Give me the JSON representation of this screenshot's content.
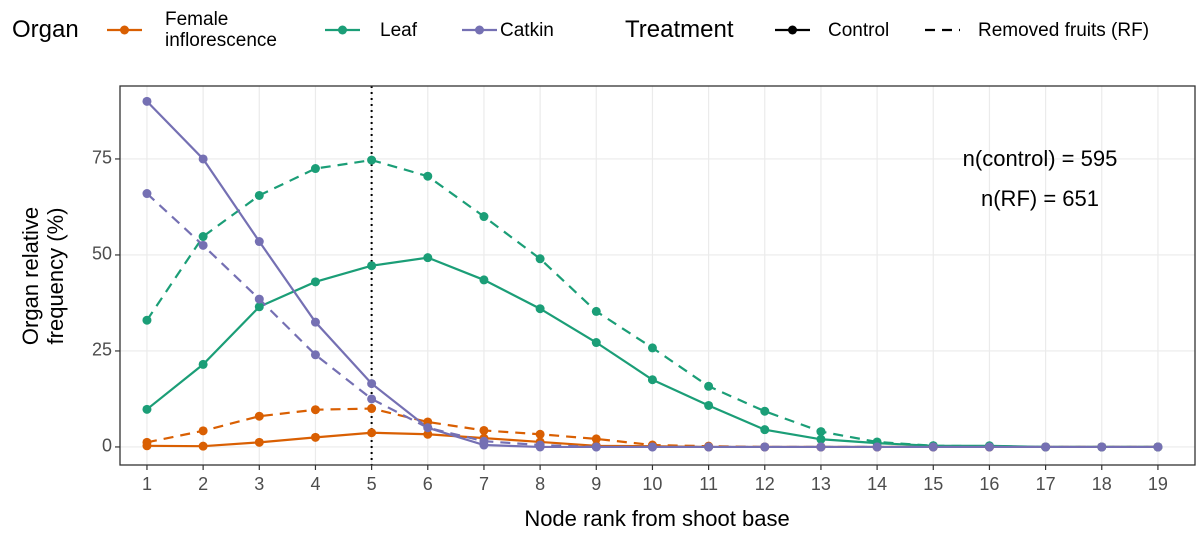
{
  "chart_data": {
    "type": "line",
    "x_label": "Node rank from shoot base",
    "y_label": [
      "Organ relative",
      "frequency (%)"
    ],
    "x": [
      1,
      2,
      3,
      4,
      5,
      6,
      7,
      8,
      9,
      10,
      11,
      12,
      13,
      14,
      15,
      16,
      17,
      18,
      19
    ],
    "xlim": [
      0.52,
      19.66
    ],
    "xticks": [
      1,
      2,
      3,
      4,
      5,
      6,
      7,
      8,
      9,
      10,
      11,
      12,
      13,
      14,
      15,
      16,
      17,
      18,
      19
    ],
    "ylim": [
      -4.7,
      94
    ],
    "yticks": [
      0,
      25,
      50,
      75
    ],
    "grid": true,
    "vline": 5,
    "annotations": [
      "n(control) = 595",
      "n(RF) = 651"
    ],
    "legend": {
      "organ_title": "Organ",
      "treatment_title": "Treatment",
      "position": "top"
    },
    "treatments": [
      {
        "name": "Control",
        "dash": "solid"
      },
      {
        "name": "Removed fruits (RF)",
        "dash": "dashed"
      }
    ],
    "series": [
      {
        "name": "Female inflorescence",
        "color": "#d95f02",
        "treatment_values": [
          [
            0.3,
            0.2,
            1.2,
            2.5,
            3.7,
            3.3,
            2.3,
            1.3,
            0.3,
            0.2,
            0,
            0,
            0,
            0,
            0,
            0,
            0,
            0,
            0
          ],
          [
            1.2,
            4.2,
            8,
            9.7,
            10,
            6.5,
            4.3,
            3.3,
            2.1,
            0.5,
            0.2,
            0,
            0,
            0,
            0,
            0,
            0,
            0,
            0
          ]
        ]
      },
      {
        "name": "Leaf",
        "color": "#1b9e77",
        "treatment_values": [
          [
            9.8,
            21.5,
            36.5,
            43,
            47.2,
            49.3,
            43.5,
            36,
            27.2,
            17.5,
            10.8,
            4.5,
            2,
            1,
            0.3,
            0.3,
            0,
            0,
            0
          ],
          [
            33,
            54.8,
            65.5,
            72.5,
            74.7,
            70.5,
            60,
            49,
            35.3,
            25.8,
            15.8,
            9.3,
            4,
            1.3,
            0.3,
            0.2,
            0,
            0,
            0
          ]
        ]
      },
      {
        "name": "Catkin",
        "color": "#7570b3",
        "treatment_values": [
          [
            90,
            75,
            53.5,
            32.5,
            16.5,
            5,
            0.5,
            0,
            0,
            0,
            0,
            0,
            0,
            0,
            0,
            0,
            0,
            0,
            0
          ],
          [
            66,
            52.5,
            38.5,
            24,
            12.5,
            5,
            1.5,
            0.5,
            0,
            0,
            0,
            0,
            0,
            0,
            0,
            0,
            0,
            0,
            0
          ]
        ]
      }
    ]
  }
}
